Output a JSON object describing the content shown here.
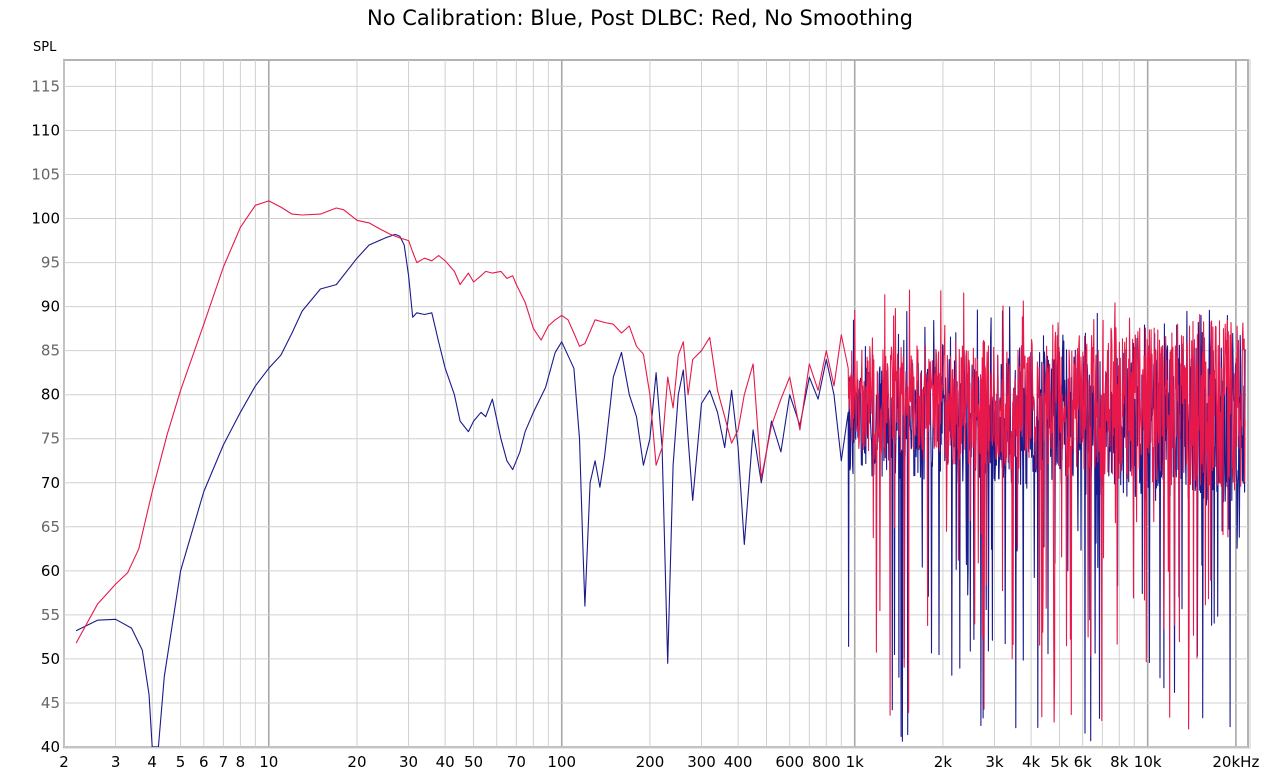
{
  "chart_data": {
    "type": "line",
    "title": "No Calibration: Blue, Post DLBC: Red, No Smoothing",
    "ylabel": "SPL",
    "xlabel": "",
    "xscale": "log",
    "xlim": [
      2,
      22000
    ],
    "ylim": [
      40,
      118
    ],
    "grid": true,
    "legend": "none (series identified in title)",
    "colors": {
      "blue": "#1a1a8c",
      "red": "#e8194a",
      "grid": "#d0d0d0",
      "grid_major": "#a8a8a8"
    },
    "x_ticks": [
      {
        "v": 2,
        "label": "2"
      },
      {
        "v": 3,
        "label": "3"
      },
      {
        "v": 4,
        "label": "4"
      },
      {
        "v": 5,
        "label": "5"
      },
      {
        "v": 6,
        "label": "6"
      },
      {
        "v": 7,
        "label": "7"
      },
      {
        "v": 8,
        "label": "8"
      },
      {
        "v": 10,
        "label": "10"
      },
      {
        "v": 20,
        "label": "20"
      },
      {
        "v": 30,
        "label": "30"
      },
      {
        "v": 40,
        "label": "40"
      },
      {
        "v": 50,
        "label": "50"
      },
      {
        "v": 70,
        "label": "70"
      },
      {
        "v": 100,
        "label": "100"
      },
      {
        "v": 200,
        "label": "200"
      },
      {
        "v": 300,
        "label": "300"
      },
      {
        "v": 400,
        "label": "400"
      },
      {
        "v": 600,
        "label": "600"
      },
      {
        "v": 800,
        "label": "800"
      },
      {
        "v": 1000,
        "label": "1k"
      },
      {
        "v": 2000,
        "label": "2k"
      },
      {
        "v": 3000,
        "label": "3k"
      },
      {
        "v": 4000,
        "label": "4k"
      },
      {
        "v": 5000,
        "label": "5k"
      },
      {
        "v": 6000,
        "label": "6k"
      },
      {
        "v": 8000,
        "label": "8k"
      },
      {
        "v": 10000,
        "label": "10k"
      },
      {
        "v": 20000,
        "label": "20kHz"
      }
    ],
    "y_ticks": [
      {
        "v": 40,
        "label": "40"
      },
      {
        "v": 45,
        "label": "45"
      },
      {
        "v": 50,
        "label": "50"
      },
      {
        "v": 55,
        "label": "55"
      },
      {
        "v": 60,
        "label": "60"
      },
      {
        "v": 65,
        "label": "65"
      },
      {
        "v": 70,
        "label": "70"
      },
      {
        "v": 75,
        "label": "75"
      },
      {
        "v": 80,
        "label": "80"
      },
      {
        "v": 85,
        "label": "85"
      },
      {
        "v": 90,
        "label": "90"
      },
      {
        "v": 95,
        "label": "95"
      },
      {
        "v": 100,
        "label": "100"
      },
      {
        "v": 105,
        "label": "105"
      },
      {
        "v": 110,
        "label": "110"
      },
      {
        "v": 115,
        "label": "115"
      }
    ],
    "series": [
      {
        "color": "blue",
        "x": [
          2.2,
          2.6,
          3.0,
          3.4,
          3.7,
          3.9,
          4.0,
          4.2,
          4.4,
          5.0,
          6.0,
          7.0,
          8.0,
          9.0,
          10,
          11,
          12,
          13,
          15,
          17,
          20,
          22,
          25,
          27,
          28,
          29,
          30,
          31,
          32,
          34,
          36,
          38,
          40,
          43,
          45,
          48,
          50,
          53,
          55,
          58,
          62,
          65,
          68,
          72,
          75,
          80,
          88,
          95,
          100,
          110,
          115,
          118,
          120,
          125,
          130,
          135,
          140,
          150,
          160,
          170,
          180,
          190,
          200,
          210,
          220,
          230,
          240,
          250,
          260,
          270,
          280,
          300,
          320,
          340,
          360,
          380,
          400,
          420,
          450,
          480,
          520,
          560,
          600,
          650,
          700,
          750,
          800,
          850,
          900,
          950
        ],
        "y": [
          53.2,
          54.4,
          54.5,
          53.5,
          51,
          46,
          40,
          40,
          48,
          60,
          69,
          74.3,
          78,
          81,
          83,
          84.5,
          87,
          89.5,
          92,
          92.5,
          95.5,
          97,
          97.8,
          98.2,
          98,
          97,
          93.5,
          88.8,
          89.3,
          89.1,
          89.3,
          86,
          83,
          80,
          77,
          75.8,
          77,
          78,
          77.5,
          79.5,
          75,
          72.5,
          71.5,
          73.5,
          75.8,
          78,
          80.8,
          84.8,
          86,
          83,
          75,
          63,
          56,
          70,
          72.5,
          69.5,
          73,
          82,
          84.8,
          80,
          77.5,
          72,
          75,
          82.5,
          74,
          49.5,
          72,
          80,
          82.8,
          75,
          68,
          79,
          80.5,
          78,
          74,
          80.5,
          74,
          63,
          76,
          70,
          77,
          73.5,
          80,
          76.5,
          82,
          79.5,
          84,
          80,
          72.5,
          78
        ]
      },
      {
        "color": "red",
        "x": [
          2.2,
          2.6,
          3.0,
          3.3,
          3.6,
          4.0,
          4.5,
          5.0,
          6.0,
          7.0,
          8.0,
          9.0,
          10,
          11,
          12,
          13,
          15,
          17,
          18,
          20,
          22,
          24,
          26,
          28,
          30,
          31,
          32,
          34,
          36,
          38,
          40,
          43,
          45,
          48,
          50,
          53,
          55,
          58,
          62,
          65,
          68,
          70,
          75,
          80,
          85,
          90,
          95,
          100,
          105,
          110,
          115,
          120,
          130,
          140,
          150,
          160,
          170,
          180,
          190,
          200,
          210,
          220,
          230,
          240,
          250,
          260,
          270,
          280,
          300,
          320,
          340,
          360,
          380,
          400,
          420,
          450,
          480,
          520,
          560,
          600,
          650,
          700,
          750,
          800,
          850,
          900,
          950
        ],
        "y": [
          51.8,
          56.2,
          58.5,
          59.8,
          62.5,
          69,
          75.5,
          80.5,
          88,
          94.5,
          99,
          101.5,
          102,
          101.3,
          100.5,
          100.4,
          100.5,
          101.2,
          101,
          99.8,
          99.5,
          98.8,
          98.2,
          97.8,
          97.5,
          96.2,
          95,
          95.5,
          95.2,
          95.8,
          95.2,
          94,
          92.5,
          93.8,
          92.8,
          93.5,
          94,
          93.8,
          94,
          93.2,
          93.5,
          92.5,
          90.5,
          87.5,
          86.2,
          87.8,
          88.5,
          89,
          88.5,
          87,
          85.5,
          85.8,
          88.5,
          88.2,
          88,
          87,
          87.8,
          85.5,
          84.6,
          80,
          72,
          74,
          82,
          78.5,
          84.5,
          86,
          80,
          84,
          85,
          86.5,
          80.5,
          77.5,
          74.5,
          76,
          80,
          83.5,
          70.5,
          76.5,
          79.5,
          82,
          76,
          83.5,
          80.5,
          85,
          81,
          86.8,
          83
        ]
      }
    ]
  }
}
